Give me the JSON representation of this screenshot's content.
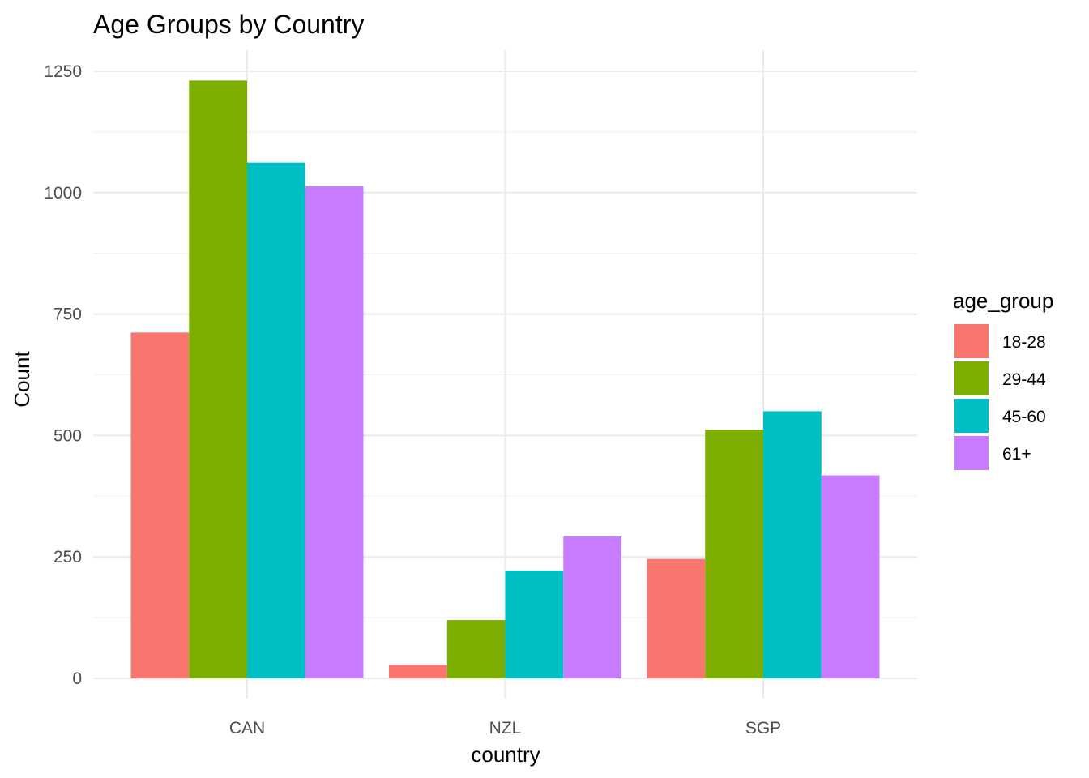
{
  "chart_data": {
    "type": "bar",
    "title": "Age Groups by Country",
    "xlabel": "country",
    "ylabel": "Count",
    "categories": [
      "CAN",
      "NZL",
      "SGP"
    ],
    "ylim": [
      0,
      1250
    ],
    "yticks": [
      0,
      250,
      500,
      750,
      1000,
      1250
    ],
    "ytick_labels": [
      "0",
      "250",
      "500",
      "750",
      "1000",
      "1250"
    ],
    "grid": true,
    "legend": {
      "title": "age_group",
      "position": "right"
    },
    "series": [
      {
        "name": "18-28",
        "color": "#F8766D",
        "values": [
          712,
          28,
          246
        ]
      },
      {
        "name": "29-44",
        "color": "#7CAE00",
        "values": [
          1231,
          120,
          512
        ]
      },
      {
        "name": "45-60",
        "color": "#00BFC4",
        "values": [
          1062,
          222,
          550
        ]
      },
      {
        "name": "61+",
        "color": "#C77CFF",
        "values": [
          1013,
          292,
          418
        ]
      }
    ]
  }
}
